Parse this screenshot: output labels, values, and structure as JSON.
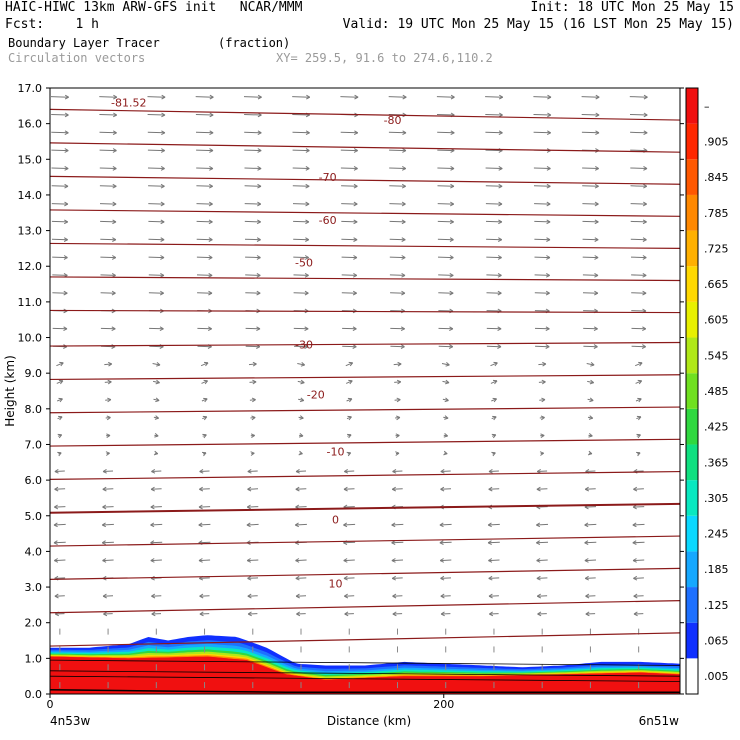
{
  "header": {
    "line1_left": "HAIC-HIWC 13km ARW-GFS init   NCAR/MMM",
    "line1_right": "Init: 18 UTC Mon 25 May 15",
    "line2_left": "Fcst:    1 h",
    "line2_right": "Valid: 19 UTC Mon 25 May 15 (16 LST Mon 25 May 15)",
    "field_name": "Boundary Layer Tracer",
    "field_units": "(fraction)",
    "vector_name": "Circulation vectors",
    "xy_text": "XY= 259.5, 91.6 to 274.6,110.2"
  },
  "chart_data": {
    "type": "cross-section",
    "ylabel": "Height (km)",
    "xlabel": "Distance (km)",
    "ylim": [
      0,
      17
    ],
    "yticks": [
      "0.0",
      "1.0",
      "2.0",
      "3.0",
      "4.0",
      "5.0",
      "6.0",
      "7.0",
      "8.0",
      "9.0",
      "10.0",
      "11.0",
      "12.0",
      "13.0",
      "14.0",
      "15.0",
      "16.0",
      "17.0"
    ],
    "xlim": [
      0,
      320
    ],
    "xticks": [
      "0",
      "200"
    ],
    "x_end_labels": {
      "left": "4n53w",
      "right": "6n51w"
    },
    "temperature_contour_labels": [
      {
        "label": "-81.52",
        "x": 40,
        "y": 16.6
      },
      {
        "label": "-80",
        "x": 174,
        "y": 16.1
      },
      {
        "label": "-70",
        "x": 141,
        "y": 14.5
      },
      {
        "label": "-60",
        "x": 141,
        "y": 13.3
      },
      {
        "label": "-50",
        "x": 129,
        "y": 12.1
      },
      {
        "label": "-30",
        "x": 129,
        "y": 9.8
      },
      {
        "label": "-20",
        "x": 135,
        "y": 8.4
      },
      {
        "label": "-10",
        "x": 145,
        "y": 6.8
      },
      {
        "label": "0",
        "x": 145,
        "y": 4.9
      },
      {
        "label": "10",
        "x": 145,
        "y": 3.1
      }
    ],
    "tracer_top_km": [
      [
        0,
        1.3
      ],
      [
        20,
        1.3
      ],
      [
        40,
        1.4
      ],
      [
        50,
        1.6
      ],
      [
        60,
        1.5
      ],
      [
        70,
        1.6
      ],
      [
        80,
        1.65
      ],
      [
        95,
        1.6
      ],
      [
        110,
        1.3
      ],
      [
        125,
        0.85
      ],
      [
        140,
        0.8
      ],
      [
        160,
        0.8
      ],
      [
        180,
        0.9
      ],
      [
        200,
        0.85
      ],
      [
        220,
        0.8
      ],
      [
        240,
        0.75
      ],
      [
        260,
        0.8
      ],
      [
        280,
        0.9
      ],
      [
        300,
        0.9
      ],
      [
        320,
        0.85
      ]
    ],
    "tracer_core_km": [
      [
        0,
        1.05
      ],
      [
        40,
        1.0
      ],
      [
        80,
        1.05
      ],
      [
        100,
        0.95
      ],
      [
        120,
        0.55
      ],
      [
        140,
        0.4
      ],
      [
        180,
        0.5
      ],
      [
        220,
        0.5
      ],
      [
        260,
        0.55
      ],
      [
        300,
        0.6
      ],
      [
        320,
        0.55
      ]
    ],
    "colorbar": {
      "labels": [
        ".005",
        ".065",
        ".125",
        ".185",
        ".245",
        ".305",
        ".365",
        ".425",
        ".485",
        ".545",
        ".605",
        ".665",
        ".725",
        ".785",
        ".845",
        ".905",
        "–"
      ],
      "colors": [
        "#ffffff",
        "#1030ff",
        "#1e70ff",
        "#16a8ff",
        "#0ad8ff",
        "#08e8c0",
        "#10e080",
        "#30d840",
        "#70e020",
        "#b0e818",
        "#e8f000",
        "#ffd800",
        "#ffb000",
        "#ff8800",
        "#ff5800",
        "#ff2800",
        "#f01010"
      ]
    }
  }
}
